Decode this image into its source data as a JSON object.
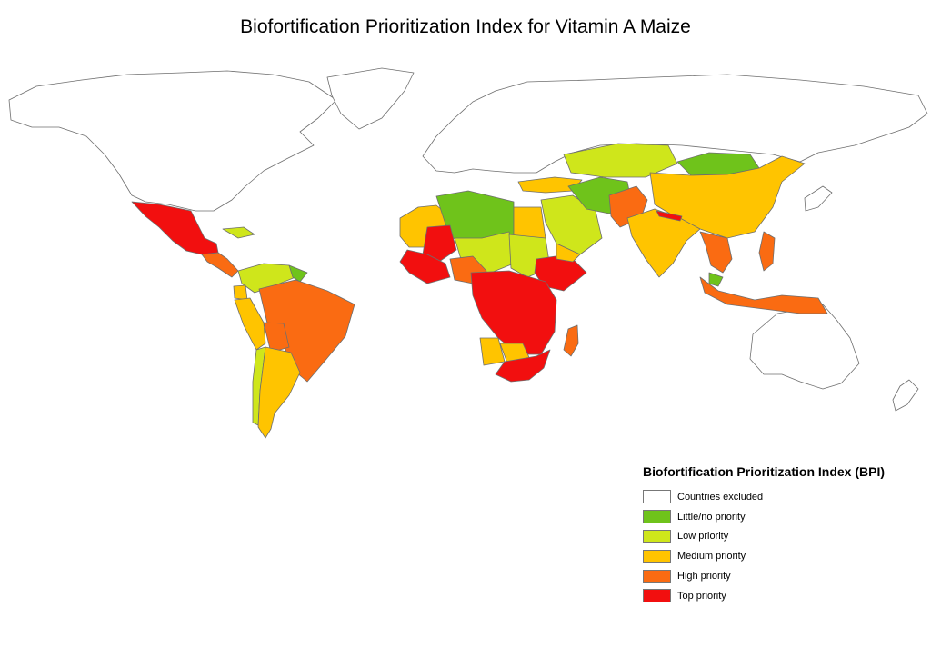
{
  "title": "Biofortification Prioritization Index for Vitamin A Maize",
  "legend": {
    "title": "Biofortification Prioritization Index (BPI)",
    "items": [
      {
        "label": "Countries excluded",
        "color": "#ffffff"
      },
      {
        "label": "Little/no priority",
        "color": "#6fc31b"
      },
      {
        "label": "Low priority",
        "color": "#cfe61b"
      },
      {
        "label": "Medium priority",
        "color": "#ffc400"
      },
      {
        "label": "High priority",
        "color": "#fa6b12"
      },
      {
        "label": "Top priority",
        "color": "#f20f0f"
      }
    ]
  }
}
